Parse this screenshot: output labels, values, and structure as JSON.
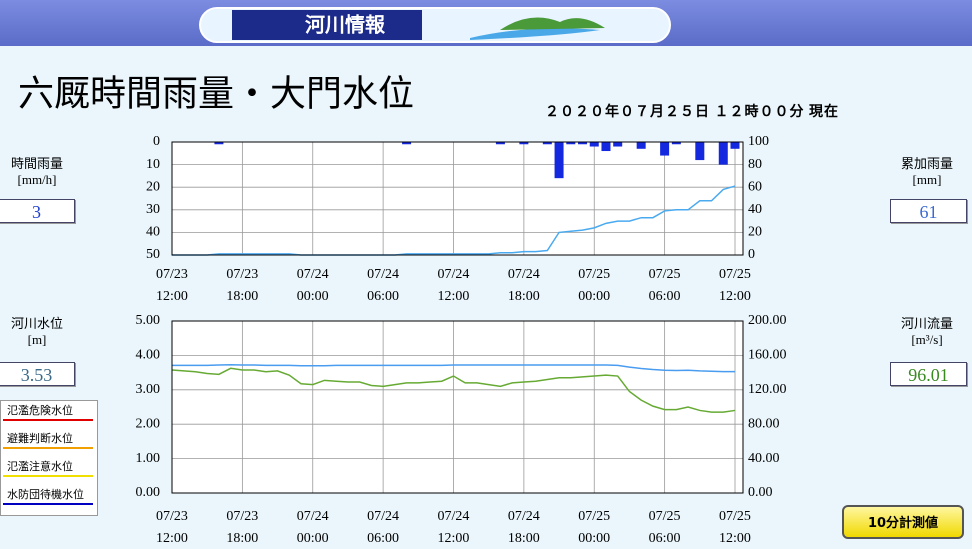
{
  "header": {
    "title": "河川情報"
  },
  "page_title": "六厩時間雨量・大門水位",
  "timestamp": "２０２０年０７月２５日 １２時００分 現在",
  "panels": {
    "rain_hourly": {
      "label": "時間雨量",
      "unit": "[mm/h]",
      "value": "3"
    },
    "rain_total": {
      "label": "累加雨量",
      "unit": "[mm]",
      "value": "61"
    },
    "water_level": {
      "label": "河川水位",
      "unit": "[m]",
      "value": "3.53"
    },
    "flow": {
      "label": "河川流量",
      "unit": "[m³/s]",
      "value": "96.01"
    }
  },
  "button": "10分計測値",
  "chart_data": [
    {
      "type": "combo",
      "categories": [
        "07/23\n12:00",
        null,
        null,
        null,
        null,
        null,
        "07/23\n18:00",
        null,
        null,
        null,
        null,
        null,
        "07/24\n00:00",
        null,
        null,
        null,
        null,
        null,
        "07/24\n06:00",
        null,
        null,
        null,
        null,
        null,
        "07/24\n12:00",
        null,
        null,
        null,
        null,
        null,
        "07/24\n18:00",
        null,
        null,
        null,
        null,
        null,
        "07/25\n00:00",
        null,
        null,
        null,
        null,
        null,
        "07/25\n06:00",
        null,
        null,
        null,
        null,
        null,
        "07/25\n12:00"
      ],
      "ylim": [
        0,
        50
      ],
      "yinvert": true,
      "yticks": [
        0,
        10,
        20,
        30,
        40,
        50
      ],
      "y2lim": [
        0,
        100
      ],
      "y2ticks": [
        0,
        20,
        40,
        60,
        80,
        100
      ],
      "grid": true,
      "series": [
        {
          "type": "bar",
          "color": "#1428e0",
          "values": [
            0,
            0,
            0,
            0,
            1,
            0,
            0,
            0,
            0,
            0,
            0,
            0,
            0,
            0,
            0,
            0,
            0,
            0,
            0,
            0,
            1,
            0,
            0,
            0,
            0,
            0,
            0,
            0,
            1,
            0,
            1,
            0,
            1,
            16,
            1,
            1,
            2,
            4,
            2,
            0,
            3,
            0,
            6,
            1,
            0,
            8,
            0,
            10,
            3
          ]
        },
        {
          "type": "line",
          "axis": "y2",
          "color": "#4aaaf0",
          "values": [
            0,
            0,
            0,
            0,
            1,
            1,
            1,
            1,
            1,
            1,
            1,
            0,
            0,
            0,
            0,
            0,
            0,
            0,
            0,
            0,
            1,
            1,
            1,
            1,
            1,
            1,
            1,
            1,
            2,
            2,
            3,
            3,
            4,
            20,
            21,
            22,
            24,
            28,
            30,
            30,
            33,
            33,
            39,
            40,
            40,
            48,
            48,
            58,
            61
          ]
        }
      ]
    },
    {
      "type": "combo",
      "categories": [
        "07/23\n12:00",
        null,
        null,
        null,
        null,
        null,
        "07/23\n18:00",
        null,
        null,
        null,
        null,
        null,
        "07/24\n00:00",
        null,
        null,
        null,
        null,
        null,
        "07/24\n06:00",
        null,
        null,
        null,
        null,
        null,
        "07/24\n12:00",
        null,
        null,
        null,
        null,
        null,
        "07/24\n18:00",
        null,
        null,
        null,
        null,
        null,
        "07/25\n00:00",
        null,
        null,
        null,
        null,
        null,
        "07/25\n06:00",
        null,
        null,
        null,
        null,
        null,
        "07/25\n12:00"
      ],
      "ylim": [
        0,
        5
      ],
      "yticks": [
        {
          "value": 0,
          "label": "0.00"
        },
        {
          "value": 1,
          "label": "1.00"
        },
        {
          "value": 2,
          "label": "2.00"
        },
        {
          "value": 3,
          "label": "3.00"
        },
        {
          "value": 4,
          "label": "4.00"
        },
        {
          "value": 5,
          "label": "5.00"
        }
      ],
      "y2lim": [
        0,
        200
      ],
      "y2ticks": [
        {
          "value": 0,
          "label": "0.00"
        },
        {
          "value": 40,
          "label": "40.00"
        },
        {
          "value": 80,
          "label": "80.00"
        },
        {
          "value": 120,
          "label": "120.00"
        },
        {
          "value": 160,
          "label": "160.00"
        },
        {
          "value": 200,
          "label": "200.00"
        }
      ],
      "grid": true,
      "series": [
        {
          "type": "line",
          "color": "#4a9cf0",
          "values": [
            3.71,
            3.71,
            3.71,
            3.71,
            3.72,
            3.73,
            3.72,
            3.72,
            3.71,
            3.71,
            3.71,
            3.7,
            3.7,
            3.7,
            3.71,
            3.71,
            3.71,
            3.71,
            3.71,
            3.71,
            3.71,
            3.71,
            3.71,
            3.71,
            3.72,
            3.72,
            3.72,
            3.72,
            3.72,
            3.72,
            3.72,
            3.72,
            3.72,
            3.72,
            3.72,
            3.72,
            3.72,
            3.72,
            3.71,
            3.66,
            3.62,
            3.59,
            3.57,
            3.56,
            3.57,
            3.55,
            3.54,
            3.53,
            3.53
          ]
        },
        {
          "type": "line",
          "axis": "y2",
          "color": "#66aa33",
          "values": [
            143,
            142,
            141,
            139,
            138,
            145,
            143,
            143,
            141,
            142,
            137,
            127,
            126,
            131,
            130,
            129,
            129,
            125,
            124,
            126,
            128,
            128,
            129,
            130,
            136,
            128,
            128,
            126,
            124,
            128,
            129,
            130,
            132,
            134,
            134,
            135,
            136,
            137,
            136,
            118,
            108,
            101,
            97,
            97,
            100,
            96,
            94,
            94,
            96.01
          ]
        }
      ],
      "thresholds": [
        {
          "name": "氾濫危険水位",
          "color": "#e00000"
        },
        {
          "name": "避難判断水位",
          "color": "#f0a000"
        },
        {
          "name": "氾濫注意水位",
          "color": "#f0e000"
        },
        {
          "name": "水防団待機水位",
          "color": "#0000c0"
        }
      ]
    }
  ]
}
